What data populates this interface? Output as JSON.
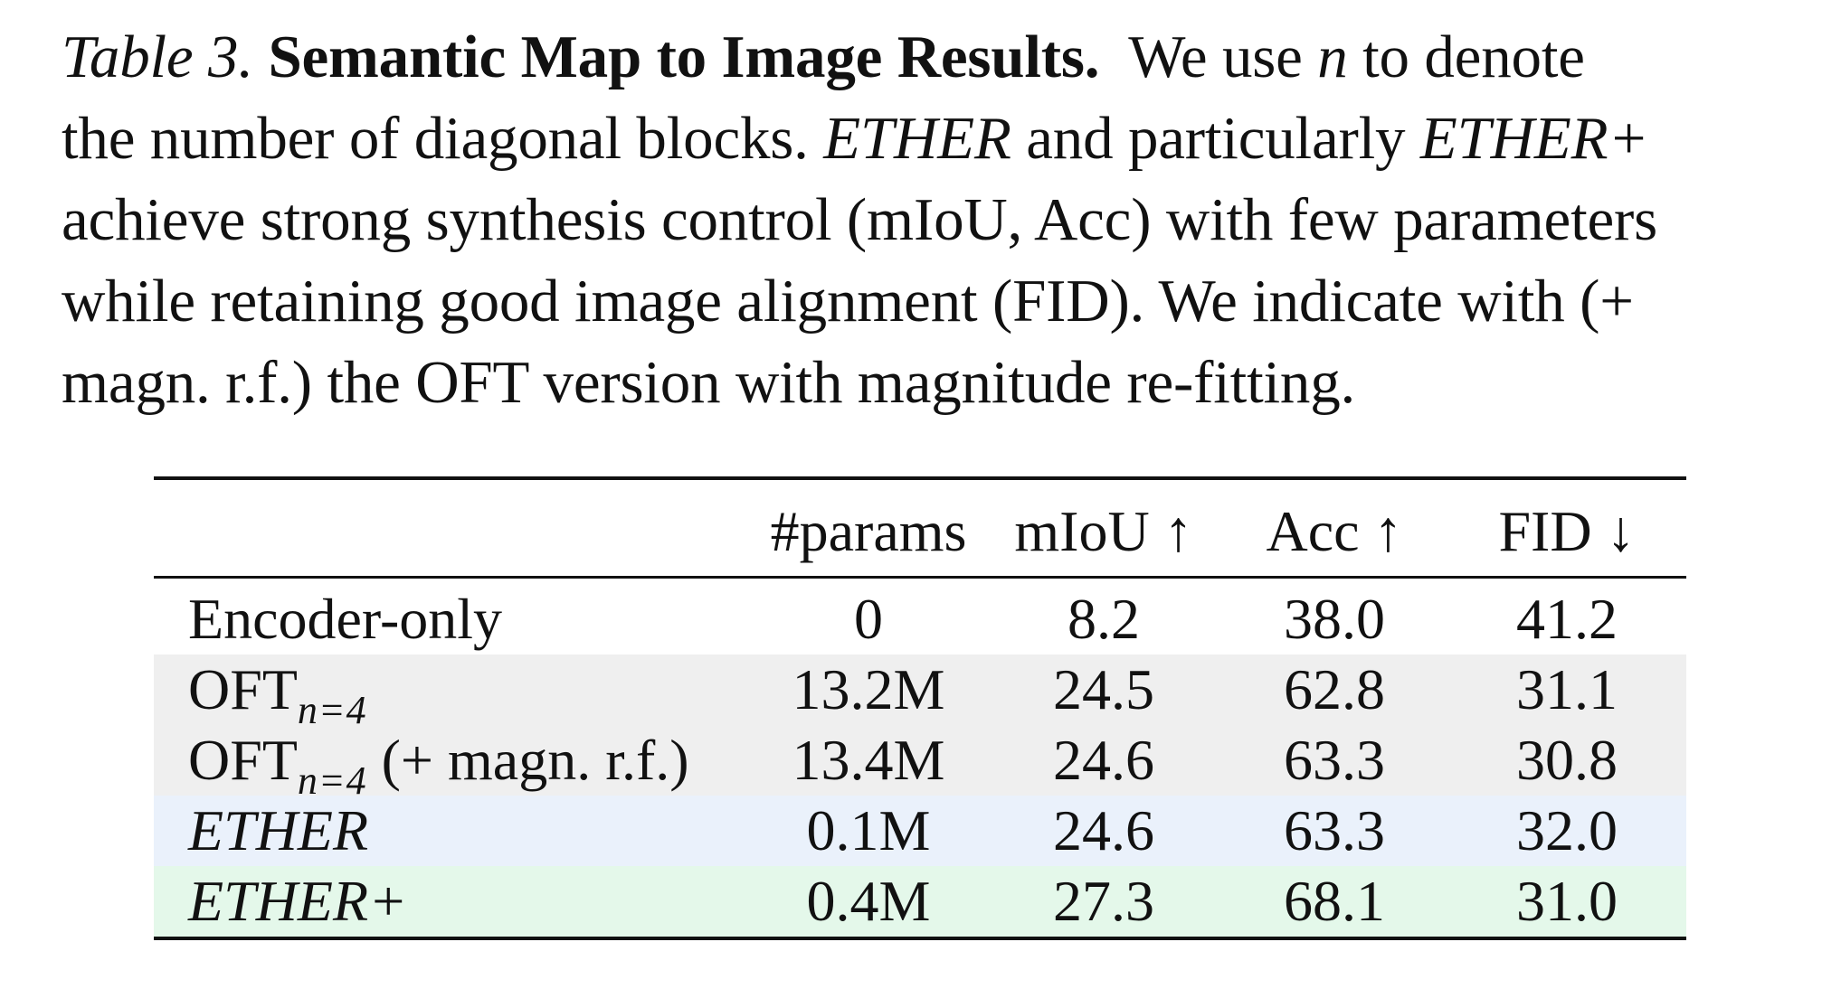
{
  "caption": {
    "label": "Table 3.",
    "title": "Semantic Map to Image Results.",
    "lines": {
      "l1_rest_a": "We use ",
      "l1_var": "n",
      "l1_rest_b": " to denote",
      "l2_a": "the number of diagonal blocks. ",
      "l2_it1": "ETHER",
      "l2_b": " and particularly ",
      "l2_it2": "ETHER+",
      "l3": "achieve strong synthesis control (mIoU, Acc) with few parameters",
      "l4": "while retaining good image alignment (FID). We indicate with (+",
      "l5": "magn. r.f.) the OFT version with magnitude re-fitting."
    }
  },
  "table": {
    "headers": {
      "name": "",
      "params": "#params",
      "miou": "mIoU ↑",
      "acc": "Acc ↑",
      "fid": "FID ↓"
    },
    "rows": [
      {
        "name": "Encoder-only",
        "params": "0",
        "miou": "8.2",
        "acc": "38.0",
        "fid": "41.2"
      },
      {
        "name": "OFT",
        "subscript": "n=4",
        "params": "13.2M",
        "miou": "24.5",
        "acc": "62.8",
        "fid": "31.1",
        "background": "#efefef"
      },
      {
        "name": "OFT",
        "subscript": "n=4",
        "suffix": " (+ magn. r.f.)",
        "params": "13.4M",
        "miou": "24.6",
        "acc": "63.3",
        "fid": "30.8",
        "bold": [
          "fid"
        ],
        "background": "#efefef"
      },
      {
        "name": "ETHER",
        "params": "0.1M",
        "miou": "24.6",
        "acc": "63.3",
        "fid": "32.0",
        "background": "#eaf1fb"
      },
      {
        "name": "ETHER+",
        "params": "0.4M",
        "miou": "27.3",
        "acc": "68.1",
        "fid": "31.0",
        "bold": [
          "miou",
          "acc"
        ],
        "background": "#e4f8ea"
      }
    ]
  }
}
